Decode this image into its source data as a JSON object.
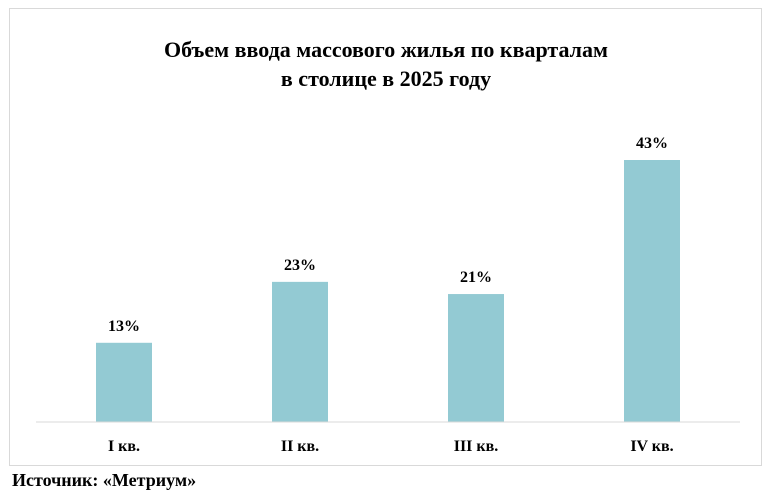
{
  "chart_data": {
    "type": "bar",
    "title_lines": [
      "Объем ввода массового жилья по кварталам",
      "в столице в 2025 году"
    ],
    "categories": [
      "I кв.",
      "II кв.",
      "III кв.",
      "IV кв."
    ],
    "values": [
      13,
      23,
      21,
      43
    ],
    "value_labels": [
      "13%",
      "23%",
      "21%",
      "43%"
    ],
    "unit": "%",
    "ylim": [
      0,
      50
    ],
    "grid": false,
    "legend": "none",
    "bar_color": "#93cad3",
    "axis_color": "#d9d9d9"
  },
  "source": "Источник: «Метриум»"
}
